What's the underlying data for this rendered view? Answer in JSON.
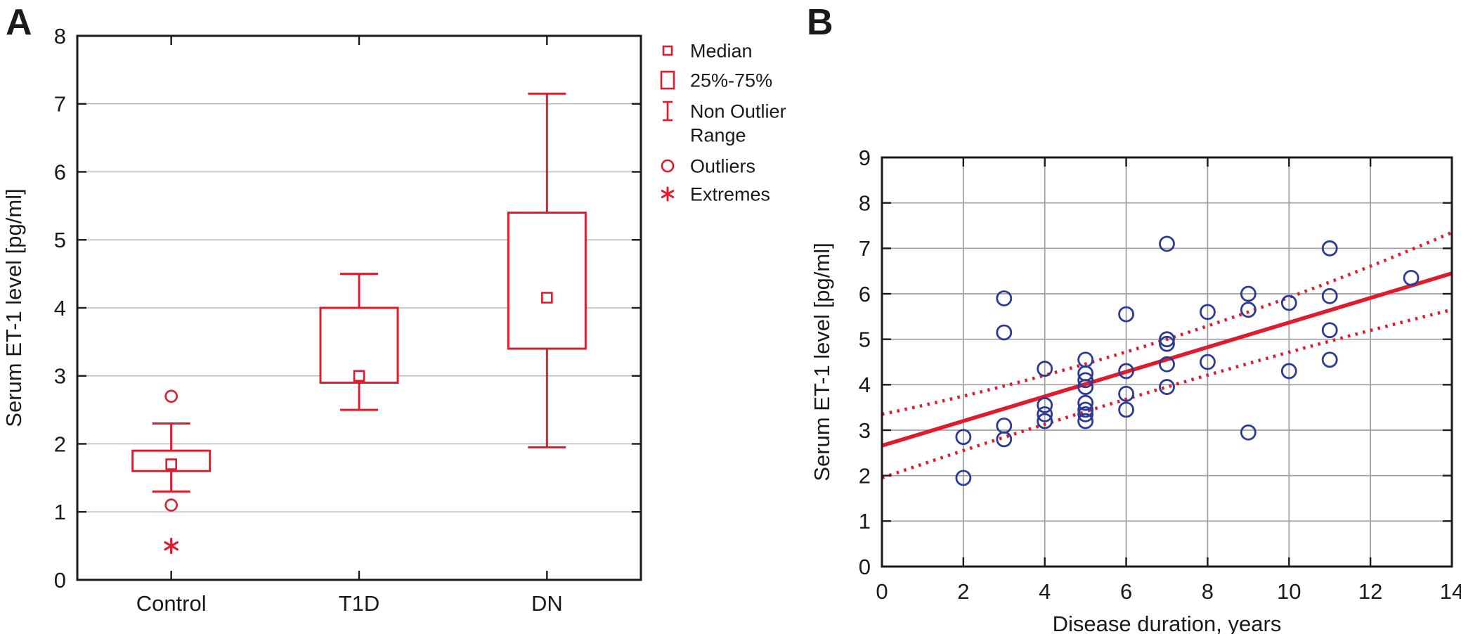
{
  "figure": {
    "panel_a": {
      "label": "A",
      "y_axis_title": "Serum ET-1 level [pg/ml]",
      "y_ticks": [
        0,
        1,
        2,
        3,
        4,
        5,
        6,
        7,
        8
      ],
      "categories": [
        "Control",
        "T1D",
        "DN"
      ],
      "legend": [
        {
          "icon": "median-square-icon",
          "label": "Median",
          "lines": [
            "Median"
          ]
        },
        {
          "icon": "iqr-box-icon",
          "label": "25%-75%",
          "lines": [
            "25%-75%"
          ]
        },
        {
          "icon": "whisker-range-icon",
          "label": "Non Outlier Range",
          "lines": [
            "Non Outlier",
            "Range"
          ]
        },
        {
          "icon": "outlier-circle-icon",
          "label": "Outliers",
          "lines": [
            "Outliers"
          ]
        },
        {
          "icon": "extreme-asterisk-icon",
          "label": "Extremes",
          "lines": [
            "Extremes"
          ]
        }
      ]
    },
    "panel_b": {
      "label": "B",
      "y_axis_title": "Serum ET-1 level [pg/ml]",
      "x_axis_title": "Disease duration, years",
      "y_ticks": [
        0,
        1,
        2,
        3,
        4,
        5,
        6,
        7,
        8,
        9
      ],
      "x_ticks": [
        0,
        2,
        4,
        6,
        8,
        10,
        12,
        14
      ]
    }
  },
  "chart_data": [
    {
      "type": "box",
      "title": "",
      "xlabel": "",
      "ylabel": "Serum ET-1 level [pg/ml]",
      "ylim": [
        0,
        8
      ],
      "grid": true,
      "legend_position": "right-top-outside",
      "categories": [
        "Control",
        "T1D",
        "DN"
      ],
      "boxes": [
        {
          "category": "Control",
          "median": 1.7,
          "q1": 1.6,
          "q3": 1.9,
          "whisker_low": 1.3,
          "whisker_high": 2.3,
          "outliers": [
            2.7,
            1.1
          ],
          "extremes": [
            0.5
          ]
        },
        {
          "category": "T1D",
          "median": 3.0,
          "q1": 2.9,
          "q3": 4.0,
          "whisker_low": 2.5,
          "whisker_high": 4.5,
          "outliers": [],
          "extremes": []
        },
        {
          "category": "DN",
          "median": 4.15,
          "q1": 3.4,
          "q3": 5.4,
          "whisker_low": 1.95,
          "whisker_high": 7.15,
          "outliers": [],
          "extremes": []
        }
      ],
      "legend": [
        "Median",
        "25%-75%",
        "Non Outlier Range",
        "Outliers",
        "Extremes"
      ]
    },
    {
      "type": "scatter",
      "title": "",
      "xlabel": "Disease duration, years",
      "ylabel": "Serum ET-1 level [pg/ml]",
      "xlim": [
        0,
        14
      ],
      "ylim": [
        0,
        9
      ],
      "grid": true,
      "x_ticks": [
        0,
        2,
        4,
        6,
        8,
        10,
        12,
        14
      ],
      "y_ticks": [
        0,
        1,
        2,
        3,
        4,
        5,
        6,
        7,
        8,
        9
      ],
      "points": [
        [
          2,
          1.95
        ],
        [
          2,
          2.85
        ],
        [
          3,
          5.9
        ],
        [
          3,
          5.15
        ],
        [
          3,
          3.1
        ],
        [
          3,
          2.8
        ],
        [
          4,
          4.35
        ],
        [
          4,
          3.55
        ],
        [
          4,
          3.35
        ],
        [
          4,
          3.2
        ],
        [
          5,
          4.55
        ],
        [
          5,
          4.25
        ],
        [
          5,
          4.1
        ],
        [
          5,
          3.95
        ],
        [
          5,
          3.6
        ],
        [
          5,
          3.45
        ],
        [
          5,
          3.35
        ],
        [
          5,
          3.2
        ],
        [
          6,
          5.55
        ],
        [
          6,
          4.3
        ],
        [
          6,
          3.8
        ],
        [
          6,
          3.45
        ],
        [
          7,
          7.1
        ],
        [
          7,
          5.0
        ],
        [
          7,
          4.9
        ],
        [
          7,
          4.45
        ],
        [
          7,
          3.95
        ],
        [
          8,
          5.6
        ],
        [
          8,
          4.5
        ],
        [
          9,
          6.0
        ],
        [
          9,
          5.65
        ],
        [
          9,
          2.95
        ],
        [
          10,
          5.8
        ],
        [
          10,
          4.3
        ],
        [
          11,
          7.0
        ],
        [
          11,
          5.95
        ],
        [
          11,
          5.2
        ],
        [
          11,
          4.55
        ],
        [
          13,
          6.35
        ]
      ],
      "regression_line": {
        "start": [
          0,
          2.66
        ],
        "end": [
          14,
          6.45
        ],
        "style": "solid"
      },
      "confidence_band": {
        "upper": {
          "start": [
            0,
            3.35
          ],
          "mid": [
            7,
            5.0
          ],
          "end": [
            14,
            7.35
          ],
          "style": "dotted"
        },
        "lower": {
          "start": [
            0,
            1.95
          ],
          "mid": [
            7,
            3.95
          ],
          "end": [
            14,
            5.65
          ],
          "style": "dotted"
        }
      }
    }
  ],
  "colors": {
    "red": "#e01b2e",
    "blue": "#2b3a96",
    "grid_a": "#b8b8b8",
    "grid_b": "#9d9da2",
    "axis": "#1a1a1a",
    "text": "#1a1a1a",
    "background": "#ffffff"
  }
}
